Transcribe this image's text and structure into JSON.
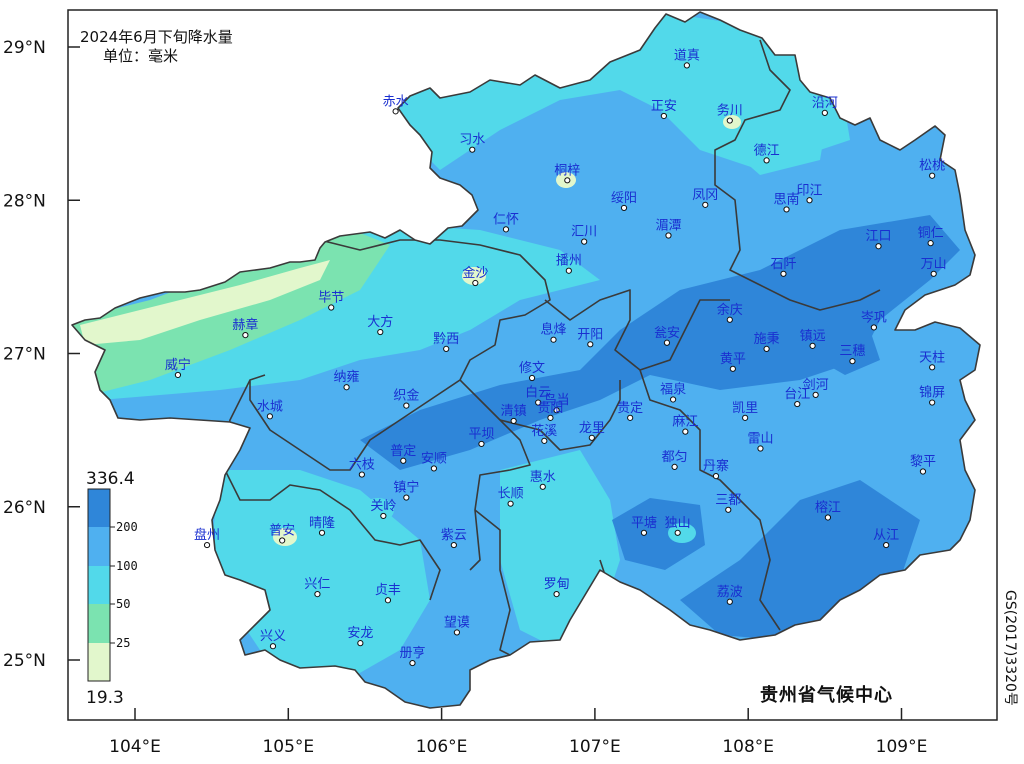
{
  "title": {
    "line1": "2024年6月下旬降水量",
    "line2": "单位：毫米"
  },
  "credit": "贵州省气候中心",
  "approval_code": "GS(2017)3320号",
  "axes": {
    "lat_ticks": [
      "29°N",
      "28°N",
      "27°N",
      "26°N",
      "25°N"
    ],
    "lon_ticks": [
      "104°E",
      "105°E",
      "106°E",
      "107°E",
      "108°E",
      "109°E"
    ]
  },
  "legend": {
    "max_label": "336.4",
    "min_label": "19.3",
    "breaks": [
      {
        "label": "200",
        "color": "#3a93e0"
      },
      {
        "label": "100",
        "color": "#5bb4f0"
      },
      {
        "label": "50",
        "color": "#54dce8"
      },
      {
        "label": "25",
        "color": "#7ee0b4"
      }
    ],
    "colors": {
      "above_200": "#2f86d9",
      "100_200": "#4fb0f0",
      "50_100": "#52d9ea",
      "25_50": "#7be3b0",
      "below_25": "#e2f7cc"
    }
  },
  "stations": [
    {
      "name": "道真",
      "lon": 107.6,
      "lat": 28.88
    },
    {
      "name": "赤水",
      "lon": 105.7,
      "lat": 28.58
    },
    {
      "name": "正安",
      "lon": 107.45,
      "lat": 28.55
    },
    {
      "name": "务川",
      "lon": 107.88,
      "lat": 28.52
    },
    {
      "name": "沿河",
      "lon": 108.5,
      "lat": 28.57
    },
    {
      "name": "习水",
      "lon": 106.2,
      "lat": 28.33
    },
    {
      "name": "德江",
      "lon": 108.12,
      "lat": 28.26
    },
    {
      "name": "桐梓",
      "lon": 106.82,
      "lat": 28.13
    },
    {
      "name": "松桃",
      "lon": 109.2,
      "lat": 28.16
    },
    {
      "name": "绥阳",
      "lon": 107.19,
      "lat": 27.95
    },
    {
      "name": "凤冈",
      "lon": 107.72,
      "lat": 27.97
    },
    {
      "name": "印江",
      "lon": 108.4,
      "lat": 28.0
    },
    {
      "name": "思南",
      "lon": 108.25,
      "lat": 27.94
    },
    {
      "name": "仁怀",
      "lon": 106.42,
      "lat": 27.81
    },
    {
      "name": "汇川",
      "lon": 106.93,
      "lat": 27.73
    },
    {
      "name": "湄潭",
      "lon": 107.48,
      "lat": 27.77
    },
    {
      "name": "江口",
      "lon": 108.85,
      "lat": 27.7
    },
    {
      "name": "铜仁",
      "lon": 109.19,
      "lat": 27.72
    },
    {
      "name": "播州",
      "lon": 106.83,
      "lat": 27.54
    },
    {
      "name": "石阡",
      "lon": 108.23,
      "lat": 27.52
    },
    {
      "name": "万山",
      "lon": 109.21,
      "lat": 27.52
    },
    {
      "name": "金沙",
      "lon": 106.22,
      "lat": 27.46
    },
    {
      "name": "毕节",
      "lon": 105.28,
      "lat": 27.3
    },
    {
      "name": "余庆",
      "lon": 107.88,
      "lat": 27.22
    },
    {
      "name": "岑巩",
      "lon": 108.82,
      "lat": 27.17
    },
    {
      "name": "大方",
      "lon": 105.6,
      "lat": 27.14
    },
    {
      "name": "赫章",
      "lon": 104.72,
      "lat": 27.12
    },
    {
      "name": "息烽",
      "lon": 106.73,
      "lat": 27.09
    },
    {
      "name": "开阳",
      "lon": 106.97,
      "lat": 27.06
    },
    {
      "name": "瓮安",
      "lon": 107.47,
      "lat": 27.07
    },
    {
      "name": "黔西",
      "lon": 106.03,
      "lat": 27.03
    },
    {
      "name": "施秉",
      "lon": 108.12,
      "lat": 27.03
    },
    {
      "name": "镇远",
      "lon": 108.42,
      "lat": 27.05
    },
    {
      "name": "三穗",
      "lon": 108.68,
      "lat": 26.95
    },
    {
      "name": "天柱",
      "lon": 109.2,
      "lat": 26.91
    },
    {
      "name": "黄平",
      "lon": 107.9,
      "lat": 26.9
    },
    {
      "name": "威宁",
      "lon": 104.28,
      "lat": 26.86
    },
    {
      "name": "修文",
      "lon": 106.59,
      "lat": 26.84
    },
    {
      "name": "纳雍",
      "lon": 105.38,
      "lat": 26.78
    },
    {
      "name": "福泉",
      "lon": 107.51,
      "lat": 26.7
    },
    {
      "name": "台江",
      "lon": 108.32,
      "lat": 26.67
    },
    {
      "name": "剑河",
      "lon": 108.44,
      "lat": 26.73
    },
    {
      "name": "白云",
      "lon": 106.63,
      "lat": 26.68
    },
    {
      "name": "乌当",
      "lon": 106.75,
      "lat": 26.63
    },
    {
      "name": "织金",
      "lon": 105.77,
      "lat": 26.66
    },
    {
      "name": "水城",
      "lon": 104.88,
      "lat": 26.59
    },
    {
      "name": "清镇",
      "lon": 106.47,
      "lat": 26.56
    },
    {
      "name": "贵阳",
      "lon": 106.71,
      "lat": 26.58
    },
    {
      "name": "贵定",
      "lon": 107.23,
      "lat": 26.58
    },
    {
      "name": "凯里",
      "lon": 107.98,
      "lat": 26.58
    },
    {
      "name": "锦屏",
      "lon": 109.2,
      "lat": 26.68
    },
    {
      "name": "龙里",
      "lon": 106.98,
      "lat": 26.45
    },
    {
      "name": "花溪",
      "lon": 106.67,
      "lat": 26.43
    },
    {
      "name": "麻江",
      "lon": 107.59,
      "lat": 26.49
    },
    {
      "name": "平坝",
      "lon": 106.26,
      "lat": 26.41
    },
    {
      "name": "雷山",
      "lon": 108.08,
      "lat": 26.38
    },
    {
      "name": "都匀",
      "lon": 107.52,
      "lat": 26.26
    },
    {
      "name": "普定",
      "lon": 105.75,
      "lat": 26.3
    },
    {
      "name": "安顺",
      "lon": 105.95,
      "lat": 26.25
    },
    {
      "name": "丹寨",
      "lon": 107.79,
      "lat": 26.2
    },
    {
      "name": "黎平",
      "lon": 109.14,
      "lat": 26.23
    },
    {
      "name": "六枝",
      "lon": 105.48,
      "lat": 26.21
    },
    {
      "name": "惠水",
      "lon": 106.66,
      "lat": 26.13
    },
    {
      "name": "镇宁",
      "lon": 105.77,
      "lat": 26.06
    },
    {
      "name": "长顺",
      "lon": 106.45,
      "lat": 26.02
    },
    {
      "name": "三都",
      "lon": 107.87,
      "lat": 25.98
    },
    {
      "name": "关岭",
      "lon": 105.62,
      "lat": 25.94
    },
    {
      "name": "榕江",
      "lon": 108.52,
      "lat": 25.93
    },
    {
      "name": "平塘",
      "lon": 107.32,
      "lat": 25.83
    },
    {
      "name": "独山",
      "lon": 107.54,
      "lat": 25.83
    },
    {
      "name": "晴隆",
      "lon": 105.22,
      "lat": 25.83
    },
    {
      "name": "从江",
      "lon": 108.9,
      "lat": 25.75
    },
    {
      "name": "盘州",
      "lon": 104.47,
      "lat": 25.75
    },
    {
      "name": "普安",
      "lon": 104.96,
      "lat": 25.78
    },
    {
      "name": "紫云",
      "lon": 106.08,
      "lat": 25.75
    },
    {
      "name": "兴仁",
      "lon": 105.19,
      "lat": 25.43
    },
    {
      "name": "贞丰",
      "lon": 105.65,
      "lat": 25.39
    },
    {
      "name": "罗甸",
      "lon": 106.75,
      "lat": 25.43
    },
    {
      "name": "荔波",
      "lon": 107.88,
      "lat": 25.38
    },
    {
      "name": "望谟",
      "lon": 106.1,
      "lat": 25.18
    },
    {
      "name": "安龙",
      "lon": 105.47,
      "lat": 25.11
    },
    {
      "name": "兴义",
      "lon": 104.9,
      "lat": 25.09
    },
    {
      "name": "册亨",
      "lon": 105.81,
      "lat": 24.98
    }
  ]
}
